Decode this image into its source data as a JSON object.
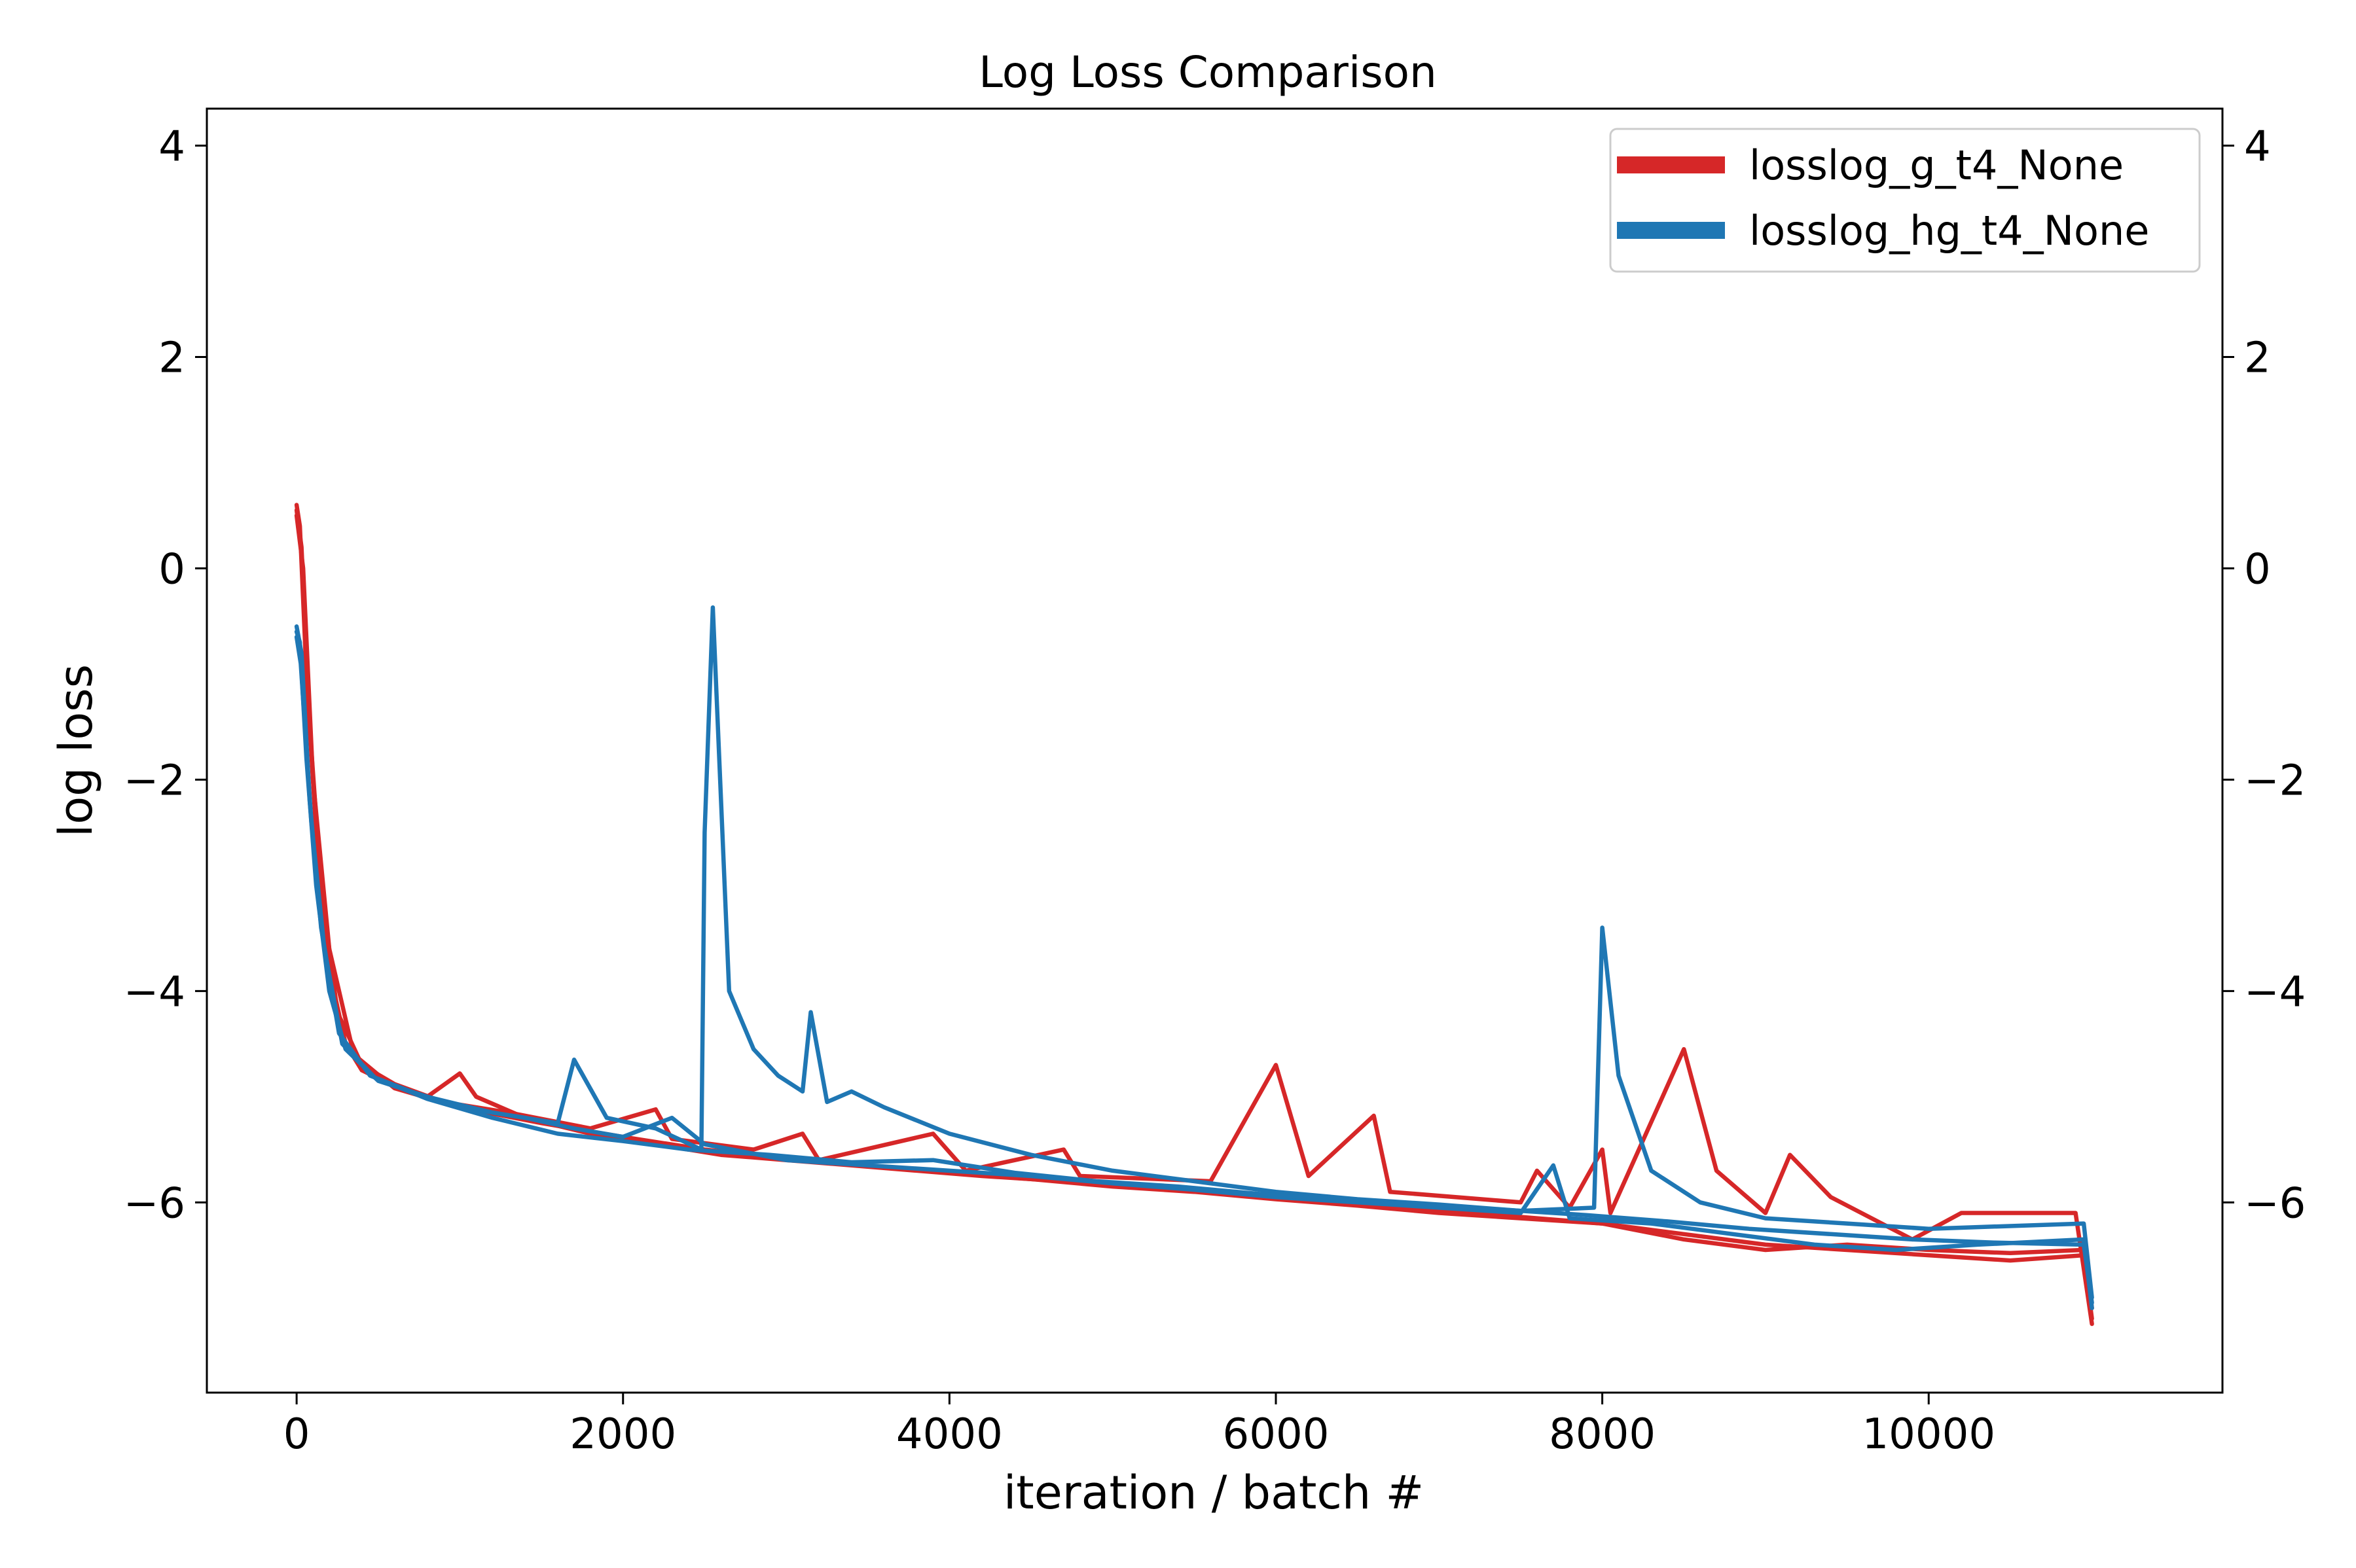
{
  "colors": {
    "series1": "#d62728",
    "series2": "#1f77b4",
    "axis": "#000000",
    "background": "#ffffff"
  },
  "chart_data": {
    "type": "line",
    "title": "Log Loss Comparison",
    "xlabel": "iteration / batch #",
    "ylabel": "log loss",
    "xlim": [
      -550,
      11800
    ],
    "ylim": [
      -7.8,
      4.35
    ],
    "xticks": [
      0,
      2000,
      4000,
      6000,
      8000,
      10000
    ],
    "xtick_labels": [
      "0",
      "2000",
      "4000",
      "6000",
      "8000",
      "10000"
    ],
    "yticks": [
      -6,
      -4,
      -2,
      0,
      2,
      4
    ],
    "ytick_labels": [
      "−6",
      "−4",
      "−2",
      "0",
      "2",
      "4"
    ],
    "right_axis_ticks": true,
    "grid": false,
    "legend_position": "top-right",
    "series": [
      {
        "name": "losslog_g_t4_None",
        "color": "#d62728",
        "runs": [
          [
            [
              0,
              0.6
            ],
            [
              20,
              0.4
            ],
            [
              60,
              -1.0
            ],
            [
              120,
              -2.5
            ],
            [
              200,
              -3.8
            ],
            [
              300,
              -4.5
            ],
            [
              400,
              -4.75
            ],
            [
              600,
              -4.9
            ],
            [
              800,
              -5.0
            ],
            [
              1000,
              -4.78
            ],
            [
              1100,
              -5.0
            ],
            [
              1400,
              -5.2
            ],
            [
              1800,
              -5.35
            ],
            [
              2200,
              -5.45
            ],
            [
              2600,
              -5.55
            ],
            [
              3000,
              -5.6
            ],
            [
              3400,
              -5.65
            ],
            [
              3800,
              -5.7
            ],
            [
              4200,
              -5.75
            ],
            [
              4700,
              -5.8
            ],
            [
              5200,
              -5.85
            ],
            [
              5700,
              -5.9
            ],
            [
              6000,
              -5.95
            ],
            [
              6400,
              -6.0
            ],
            [
              6800,
              -6.05
            ],
            [
              7200,
              -6.1
            ],
            [
              7600,
              -6.15
            ],
            [
              8000,
              -6.2
            ],
            [
              8500,
              -6.3
            ],
            [
              9000,
              -6.4
            ],
            [
              9500,
              -6.45
            ],
            [
              10000,
              -6.5
            ],
            [
              10500,
              -6.55
            ],
            [
              10950,
              -6.5
            ],
            [
              11000,
              -7.1
            ]
          ],
          [
            [
              0,
              0.55
            ],
            [
              30,
              0.2
            ],
            [
              80,
              -1.5
            ],
            [
              150,
              -3.0
            ],
            [
              250,
              -4.2
            ],
            [
              400,
              -4.7
            ],
            [
              600,
              -4.88
            ],
            [
              900,
              -5.05
            ],
            [
              1300,
              -5.15
            ],
            [
              1800,
              -5.3
            ],
            [
              2200,
              -5.12
            ],
            [
              2300,
              -5.4
            ],
            [
              2800,
              -5.5
            ],
            [
              3100,
              -5.35
            ],
            [
              3200,
              -5.6
            ],
            [
              3900,
              -5.35
            ],
            [
              4100,
              -5.7
            ],
            [
              4700,
              -5.5
            ],
            [
              4800,
              -5.75
            ],
            [
              5600,
              -5.8
            ],
            [
              6000,
              -4.7
            ],
            [
              6200,
              -5.75
            ],
            [
              6600,
              -5.18
            ],
            [
              6700,
              -5.9
            ],
            [
              7500,
              -6.0
            ],
            [
              7600,
              -5.7
            ],
            [
              7800,
              -6.05
            ],
            [
              8000,
              -5.5
            ],
            [
              8050,
              -6.1
            ],
            [
              8500,
              -4.55
            ],
            [
              8700,
              -5.7
            ],
            [
              9000,
              -6.1
            ],
            [
              9150,
              -5.55
            ],
            [
              9400,
              -5.95
            ],
            [
              9900,
              -6.35
            ],
            [
              10200,
              -6.1
            ],
            [
              10900,
              -6.1
            ],
            [
              11000,
              -7.15
            ]
          ],
          [
            [
              0,
              0.5
            ],
            [
              40,
              0.0
            ],
            [
              100,
              -2.0
            ],
            [
              200,
              -3.6
            ],
            [
              350,
              -4.6
            ],
            [
              600,
              -4.92
            ],
            [
              1000,
              -5.1
            ],
            [
              1500,
              -5.25
            ],
            [
              2000,
              -5.38
            ],
            [
              2500,
              -5.5
            ],
            [
              3000,
              -5.58
            ],
            [
              3500,
              -5.65
            ],
            [
              4000,
              -5.72
            ],
            [
              4500,
              -5.78
            ],
            [
              5000,
              -5.85
            ],
            [
              5500,
              -5.9
            ],
            [
              6000,
              -5.97
            ],
            [
              6500,
              -6.03
            ],
            [
              7000,
              -6.1
            ],
            [
              7500,
              -6.15
            ],
            [
              8000,
              -6.2
            ],
            [
              8500,
              -6.35
            ],
            [
              9000,
              -6.45
            ],
            [
              9500,
              -6.4
            ],
            [
              10000,
              -6.45
            ],
            [
              10500,
              -6.48
            ],
            [
              10950,
              -6.45
            ],
            [
              11000,
              -7.0
            ]
          ]
        ]
      },
      {
        "name": "losslog_hg_t4_None",
        "color": "#1f77b4",
        "runs": [
          [
            [
              0,
              -0.6
            ],
            [
              20,
              -0.7
            ],
            [
              60,
              -1.8
            ],
            [
              120,
              -3.0
            ],
            [
              200,
              -4.0
            ],
            [
              300,
              -4.55
            ],
            [
              500,
              -4.85
            ],
            [
              800,
              -5.0
            ],
            [
              1200,
              -5.15
            ],
            [
              1600,
              -5.25
            ],
            [
              1700,
              -4.65
            ],
            [
              1900,
              -5.2
            ],
            [
              2200,
              -5.3
            ],
            [
              2480,
              -5.5
            ],
            [
              2500,
              -2.5
            ],
            [
              2550,
              -0.37
            ],
            [
              2650,
              -4.0
            ],
            [
              2800,
              -4.55
            ],
            [
              2950,
              -4.8
            ],
            [
              3100,
              -4.95
            ],
            [
              3150,
              -4.2
            ],
            [
              3250,
              -5.05
            ],
            [
              3400,
              -4.95
            ],
            [
              3600,
              -5.1
            ],
            [
              4000,
              -5.35
            ],
            [
              4500,
              -5.55
            ],
            [
              5000,
              -5.7
            ],
            [
              5500,
              -5.8
            ],
            [
              6000,
              -5.9
            ],
            [
              6500,
              -5.97
            ],
            [
              7000,
              -6.02
            ],
            [
              7500,
              -6.08
            ],
            [
              7950,
              -6.05
            ],
            [
              8000,
              -3.4
            ],
            [
              8100,
              -4.8
            ],
            [
              8300,
              -5.7
            ],
            [
              8600,
              -6.0
            ],
            [
              9000,
              -6.15
            ],
            [
              9500,
              -6.2
            ],
            [
              10000,
              -6.25
            ],
            [
              10950,
              -6.2
            ],
            [
              11000,
              -6.9
            ]
          ],
          [
            [
              0,
              -0.55
            ],
            [
              30,
              -0.8
            ],
            [
              80,
              -2.2
            ],
            [
              150,
              -3.4
            ],
            [
              260,
              -4.4
            ],
            [
              450,
              -4.8
            ],
            [
              700,
              -4.95
            ],
            [
              1000,
              -5.1
            ],
            [
              1400,
              -5.2
            ],
            [
              1700,
              -5.3
            ],
            [
              2000,
              -5.38
            ],
            [
              2300,
              -5.2
            ],
            [
              2500,
              -5.45
            ],
            [
              3000,
              -5.6
            ],
            [
              3500,
              -5.65
            ],
            [
              4000,
              -5.7
            ],
            [
              4500,
              -5.75
            ],
            [
              5000,
              -5.82
            ],
            [
              5500,
              -5.88
            ],
            [
              6000,
              -5.95
            ],
            [
              6500,
              -6.0
            ],
            [
              7000,
              -6.05
            ],
            [
              7500,
              -6.1
            ],
            [
              7700,
              -5.65
            ],
            [
              7800,
              -6.15
            ],
            [
              8300,
              -6.2
            ],
            [
              8800,
              -6.3
            ],
            [
              9300,
              -6.4
            ],
            [
              9800,
              -6.45
            ],
            [
              10300,
              -6.4
            ],
            [
              10950,
              -6.35
            ],
            [
              11000,
              -7.0
            ]
          ],
          [
            [
              0,
              -0.65
            ],
            [
              25,
              -0.9
            ],
            [
              90,
              -2.4
            ],
            [
              170,
              -3.6
            ],
            [
              280,
              -4.5
            ],
            [
              480,
              -4.82
            ],
            [
              800,
              -5.02
            ],
            [
              1200,
              -5.2
            ],
            [
              1600,
              -5.35
            ],
            [
              2000,
              -5.42
            ],
            [
              2400,
              -5.5
            ],
            [
              2900,
              -5.55
            ],
            [
              3400,
              -5.62
            ],
            [
              3900,
              -5.6
            ],
            [
              4400,
              -5.72
            ],
            [
              4900,
              -5.8
            ],
            [
              5400,
              -5.85
            ],
            [
              5900,
              -5.92
            ],
            [
              6400,
              -5.98
            ],
            [
              6900,
              -6.03
            ],
            [
              7400,
              -6.07
            ],
            [
              7900,
              -6.12
            ],
            [
              8400,
              -6.18
            ],
            [
              8900,
              -6.25
            ],
            [
              9400,
              -6.3
            ],
            [
              9900,
              -6.35
            ],
            [
              10400,
              -6.38
            ],
            [
              10950,
              -6.4
            ],
            [
              11000,
              -6.95
            ]
          ]
        ]
      }
    ]
  }
}
